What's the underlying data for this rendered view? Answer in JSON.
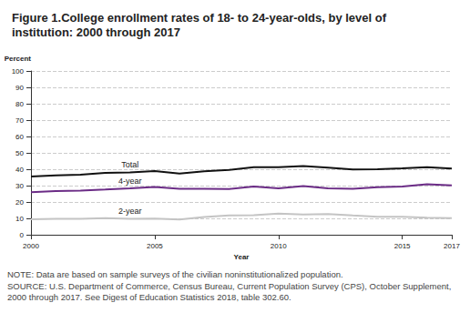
{
  "chart_data": {
    "type": "line",
    "title": "Figure 1.College enrollment rates of 18- to 24-year-olds, by level of institution: 2000 through 2017",
    "y_label": "Percent",
    "x_label": "Year",
    "x": [
      2000,
      2001,
      2002,
      2003,
      2004,
      2005,
      2006,
      2007,
      2008,
      2009,
      2010,
      2011,
      2012,
      2013,
      2014,
      2015,
      2016,
      2017
    ],
    "series": [
      {
        "name": "Total",
        "color": "#111111",
        "values": [
          35.5,
          36.3,
          36.7,
          37.8,
          38.0,
          38.9,
          37.3,
          38.8,
          39.6,
          41.3,
          41.2,
          42.0,
          41.0,
          39.9,
          40.0,
          40.5,
          41.2,
          40.4
        ]
      },
      {
        "name": "4-year",
        "color": "#6b2c86",
        "values": [
          26.0,
          26.6,
          27.0,
          27.6,
          28.3,
          29.1,
          28.0,
          28.0,
          27.9,
          29.4,
          28.3,
          29.7,
          28.3,
          28.1,
          29.0,
          29.5,
          30.8,
          30.2
        ]
      },
      {
        "name": "2-year",
        "color": "#c4c4c4",
        "values": [
          9.4,
          9.7,
          9.7,
          10.2,
          9.7,
          9.8,
          9.3,
          10.8,
          11.8,
          11.9,
          12.9,
          12.3,
          12.7,
          11.8,
          11.0,
          11.0,
          10.4,
          10.2
        ]
      }
    ],
    "xlim": [
      2000,
      2017
    ],
    "xticks": [
      2000,
      2005,
      2010,
      2015,
      2017
    ],
    "ylim": [
      0,
      100
    ],
    "yticks": [
      0,
      10,
      20,
      30,
      40,
      50,
      60,
      70,
      80,
      90,
      100
    ],
    "grid": true,
    "annotations": [
      "NOTE: Data are based on sample surveys of the civilian noninstitutionalized population.",
      "SOURCE: U.S. Department of Commerce, Census Bureau, Current Population Survey (CPS), October Supplement, 2000 through 2017. See Digest of Education Statistics 2018, table 302.60."
    ]
  }
}
